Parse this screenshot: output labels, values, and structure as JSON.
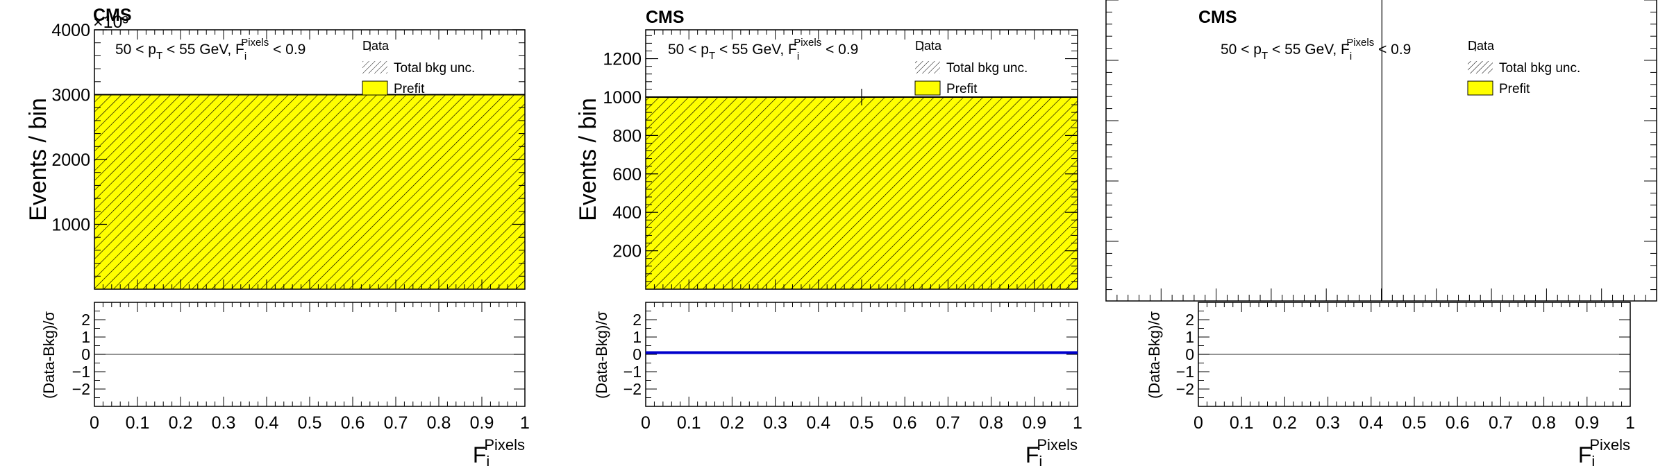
{
  "colors": {
    "prefit_fill": "#ffff00",
    "hatch": "#000000",
    "pull_line": "#0000cc",
    "axis": "#000000"
  },
  "chart_data": [
    {
      "type": "bar",
      "cms_label": "CMS",
      "exponent_label": "×10³",
      "selection_label": {
        "pre": "50 < p",
        "sub1": "T",
        "mid": " < 55 GeV, F",
        "sub2": "i",
        "sup2": "Pixels",
        "post": " < 0.9"
      },
      "legend": {
        "data": "Data",
        "unc": "Total bkg unc.",
        "prefit": "Prefit"
      },
      "ylabel": "Events / bin",
      "ratio_ylabel": "(Data-Bkg)/σ",
      "xlabel": {
        "base": "F",
        "sub": "i",
        "sup": "Pixels"
      },
      "xlim": [
        0,
        1
      ],
      "ylim": [
        0,
        4.0
      ],
      "yticks": [
        "1000",
        "2000",
        "3000",
        "4000"
      ],
      "ytick_values": [
        1,
        2,
        3,
        4
      ],
      "xticks": [
        "0",
        "0.1",
        "0.2",
        "0.3",
        "0.4",
        "0.5",
        "0.6",
        "0.7",
        "0.8",
        "0.9",
        "1"
      ],
      "bins": [
        [
          0,
          1
        ]
      ],
      "prefit_values": [
        3.0
      ],
      "ratio_ylim": [
        -3,
        3
      ],
      "ratio_yticks": [
        "−2",
        "−1",
        "0",
        "1",
        "2"
      ],
      "ratio_values": [
        0
      ],
      "ratio_line": "gray"
    },
    {
      "type": "bar",
      "cms_label": "CMS",
      "exponent_label": "",
      "selection_label": {
        "pre": "50 < p",
        "sub1": "T",
        "mid": " < 55 GeV, F",
        "sub2": "i",
        "sup2": "Pixels",
        "post": " < 0.9"
      },
      "legend": {
        "data": "Data",
        "unc": "Total bkg unc.",
        "prefit": "Prefit"
      },
      "ylabel": "Events / bin",
      "ratio_ylabel": "(Data-Bkg)/σ",
      "xlabel": {
        "base": "F",
        "sub": "i",
        "sup": "Pixels"
      },
      "xlim": [
        0,
        1
      ],
      "ylim": [
        0,
        1350
      ],
      "yticks": [
        "200",
        "400",
        "600",
        "800",
        "1000",
        "1200"
      ],
      "ytick_values": [
        200,
        400,
        600,
        800,
        1000,
        1200
      ],
      "xticks": [
        "0",
        "0.1",
        "0.2",
        "0.3",
        "0.4",
        "0.5",
        "0.6",
        "0.7",
        "0.8",
        "0.9",
        "1"
      ],
      "bins": [
        [
          0,
          1
        ]
      ],
      "prefit_values": [
        1000
      ],
      "data_point": {
        "x": 0.5,
        "y": 1000
      },
      "ratio_ylim": [
        -3,
        3
      ],
      "ratio_yticks": [
        "−2",
        "−1",
        "0",
        "1",
        "2"
      ],
      "ratio_values": [
        0.1
      ],
      "ratio_line": "blue"
    },
    {
      "type": "bar",
      "cms_label": "CMS",
      "exponent_label": "",
      "selection_label": {
        "pre": "50 < p",
        "sub1": "T",
        "mid": " < 55 GeV, F",
        "sub2": "i",
        "sup2": "Pixels",
        "post": " < 0.9"
      },
      "legend": {
        "data": "Data",
        "unc": "Total bkg unc.",
        "prefit": "Prefit"
      },
      "ylabel": "",
      "ratio_ylabel": "(Data-Bkg)/σ",
      "xlabel": {
        "base": "F",
        "sub": "i",
        "sup": "Pixels"
      },
      "xlim": [
        0,
        1
      ],
      "xticks": [
        "0",
        "0.1",
        "0.2",
        "0.3",
        "0.4",
        "0.5",
        "0.6",
        "0.7",
        "0.8",
        "0.9",
        "1"
      ],
      "bins": [],
      "prefit_values": [],
      "vertical_line_x": 0.425,
      "ratio_ylim": [
        -3,
        3
      ],
      "ratio_yticks": [
        "−2",
        "−1",
        "0",
        "1",
        "2"
      ],
      "ratio_values": [
        0
      ],
      "ratio_line": "gray"
    }
  ]
}
